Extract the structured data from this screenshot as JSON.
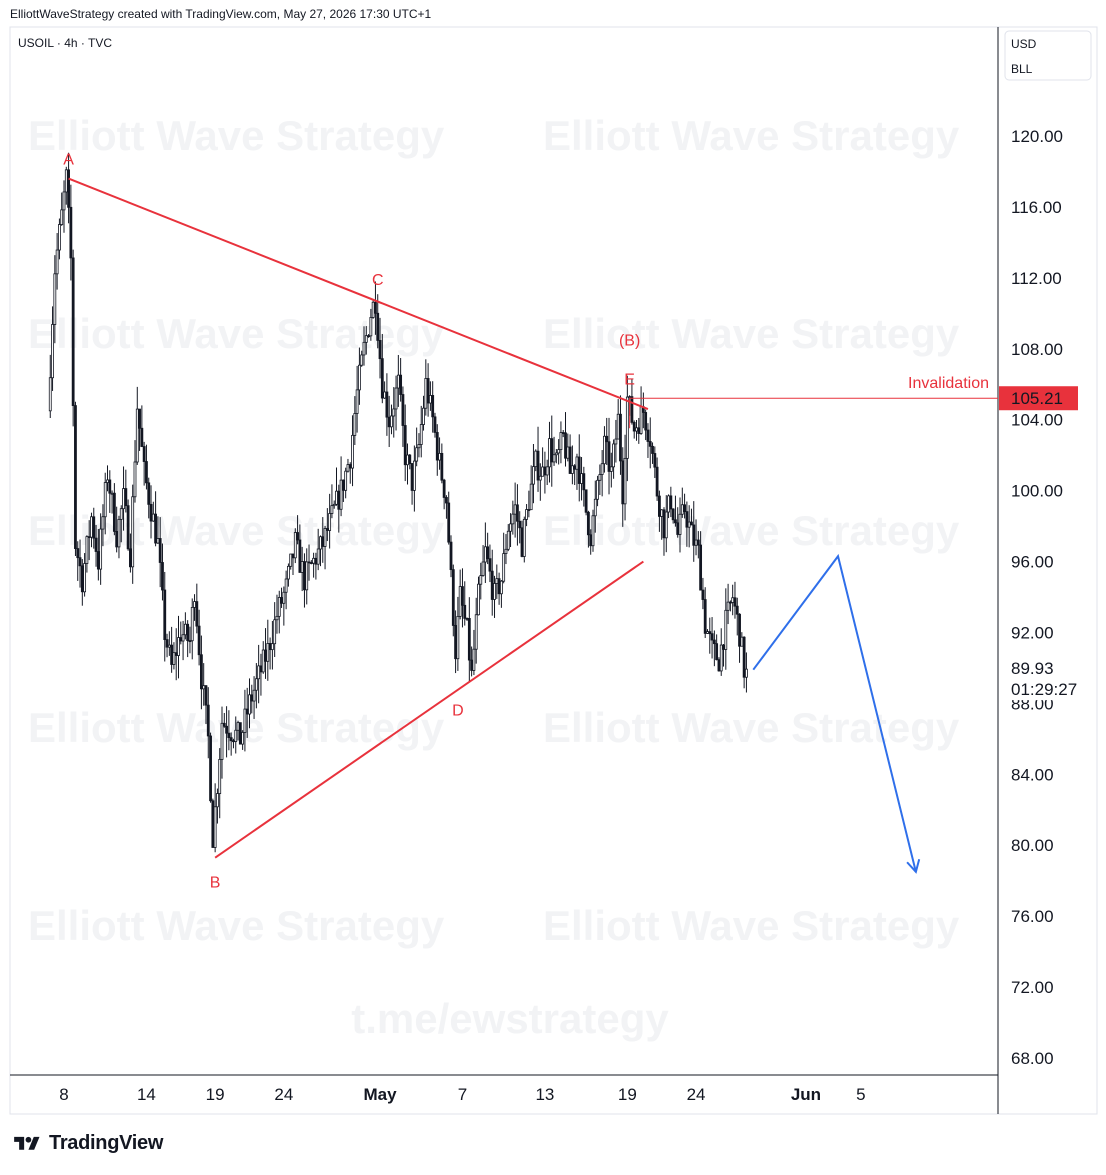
{
  "header": {
    "caption": "ElliottWaveStrategy created with TradingView.com, May 27, 2026 17:30 UTC+1"
  },
  "symbol": {
    "label": "USOIL · 4h · TVC"
  },
  "scale": {
    "currency": "USD",
    "unit": "BLL"
  },
  "watermark": {
    "brand": "Elliott Wave Strategy",
    "url": "t.me/ewstrategy"
  },
  "footer": {
    "brand": "TradingView",
    "logo_icon": "tradingview-logo-icon"
  },
  "price_labels": {
    "last_price": "89.93",
    "countdown": "01:29:27",
    "invalidation_price": "105.21",
    "invalidation_text": "Invalidation"
  },
  "colors": {
    "up": "#131722",
    "down": "#131722",
    "wave_lines": "#e8323c",
    "projection": "#2f6fea",
    "invalidation_bg": "#e8323c"
  },
  "chart_data": {
    "type": "candlestick",
    "symbol": "USOIL",
    "interval": "4h",
    "source": "TVC",
    "ylim": [
      66,
      124
    ],
    "y_ticks": [
      "120.00",
      "116.00",
      "112.00",
      "108.00",
      "104.00",
      "100.00",
      "96.00",
      "92.00",
      "88.00",
      "84.00",
      "80.00",
      "76.00",
      "72.00",
      "68.00"
    ],
    "x_ticks": [
      {
        "label": "8",
        "date": "2026-04-08",
        "bold": false
      },
      {
        "label": "14",
        "date": "2026-04-14",
        "bold": false
      },
      {
        "label": "19",
        "date": "2026-04-19",
        "bold": false
      },
      {
        "label": "24",
        "date": "2026-04-24",
        "bold": false
      },
      {
        "label": "May",
        "date": "2026-05-01",
        "bold": true
      },
      {
        "label": "7",
        "date": "2026-05-07",
        "bold": false
      },
      {
        "label": "13",
        "date": "2026-05-13",
        "bold": false
      },
      {
        "label": "19",
        "date": "2026-05-19",
        "bold": false
      },
      {
        "label": "24",
        "date": "2026-05-24",
        "bold": false
      },
      {
        "label": "Jun",
        "date": "2026-06-01",
        "bold": true
      },
      {
        "label": "5",
        "date": "2026-06-05",
        "bold": false
      }
    ],
    "price_path": [
      [
        "2026-04-07 00:00",
        104.5
      ],
      [
        "2026-04-07 12:00",
        112.5
      ],
      [
        "2026-04-08 00:00",
        115.5
      ],
      [
        "2026-04-08 08:00",
        117.6
      ],
      [
        "2026-04-08 16:00",
        113.0
      ],
      [
        "2026-04-09 00:00",
        97.0
      ],
      [
        "2026-04-09 12:00",
        95.0
      ],
      [
        "2026-04-10 04:00",
        98.5
      ],
      [
        "2026-04-10 16:00",
        96.0
      ],
      [
        "2026-04-11 08:00",
        101.0
      ],
      [
        "2026-04-12 00:00",
        97.5
      ],
      [
        "2026-04-12 12:00",
        99.5
      ],
      [
        "2026-04-13 00:00",
        96.5
      ],
      [
        "2026-04-13 12:00",
        104.8
      ],
      [
        "2026-04-14 00:00",
        101.0
      ],
      [
        "2026-04-14 12:00",
        99.0
      ],
      [
        "2026-04-15 00:00",
        97.0
      ],
      [
        "2026-04-15 12:00",
        92.0
      ],
      [
        "2026-04-16 00:00",
        90.0
      ],
      [
        "2026-04-16 16:00",
        92.0
      ],
      [
        "2026-04-17 08:00",
        91.5
      ],
      [
        "2026-04-17 16:00",
        94.5
      ],
      [
        "2026-04-18 04:00",
        89.5
      ],
      [
        "2026-04-18 16:00",
        86.0
      ],
      [
        "2026-04-19 00:00",
        80.5
      ],
      [
        "2026-04-19 08:00",
        83.5
      ],
      [
        "2026-04-19 16:00",
        87.0
      ],
      [
        "2026-04-20 08:00",
        86.5
      ],
      [
        "2026-04-21 00:00",
        86.0
      ],
      [
        "2026-04-21 16:00",
        88.0
      ],
      [
        "2026-04-22 08:00",
        89.5
      ],
      [
        "2026-04-23 00:00",
        91.0
      ],
      [
        "2026-04-23 16:00",
        93.0
      ],
      [
        "2026-04-24 08:00",
        94.5
      ],
      [
        "2026-04-25 00:00",
        97.0
      ],
      [
        "2026-04-25 16:00",
        95.0
      ],
      [
        "2026-04-26 08:00",
        96.0
      ],
      [
        "2026-04-27 00:00",
        97.0
      ],
      [
        "2026-04-27 16:00",
        98.5
      ],
      [
        "2026-04-28 08:00",
        100.0
      ],
      [
        "2026-04-29 00:00",
        102.0
      ],
      [
        "2026-04-29 12:00",
        105.5
      ],
      [
        "2026-04-30 00:00",
        108.0
      ],
      [
        "2026-04-30 12:00",
        110.0
      ],
      [
        "2026-04-30 20:00",
        110.8
      ],
      [
        "2026-05-01 08:00",
        106.0
      ],
      [
        "2026-05-01 20:00",
        104.0
      ],
      [
        "2026-05-02 12:00",
        106.0
      ],
      [
        "2026-05-03 00:00",
        102.0
      ],
      [
        "2026-05-03 12:00",
        100.5
      ],
      [
        "2026-05-04 00:00",
        102.5
      ],
      [
        "2026-05-04 12:00",
        106.0
      ],
      [
        "2026-05-05 00:00",
        104.0
      ],
      [
        "2026-05-05 12:00",
        101.5
      ],
      [
        "2026-05-06 00:00",
        99.5
      ],
      [
        "2026-05-06 08:00",
        95.0
      ],
      [
        "2026-05-06 16:00",
        91.0
      ],
      [
        "2026-05-07 00:00",
        94.0
      ],
      [
        "2026-05-07 12:00",
        92.0
      ],
      [
        "2026-05-07 20:00",
        89.5
      ],
      [
        "2026-05-08 08:00",
        94.0
      ],
      [
        "2026-05-08 20:00",
        96.5
      ],
      [
        "2026-05-09 12:00",
        94.0
      ],
      [
        "2026-05-10 00:00",
        95.0
      ],
      [
        "2026-05-10 12:00",
        98.0
      ],
      [
        "2026-05-11 00:00",
        99.0
      ],
      [
        "2026-05-11 12:00",
        97.0
      ],
      [
        "2026-05-12 00:00",
        99.5
      ],
      [
        "2026-05-12 12:00",
        101.5
      ],
      [
        "2026-05-13 00:00",
        101.0
      ],
      [
        "2026-05-13 12:00",
        102.5
      ],
      [
        "2026-05-14 00:00",
        101.5
      ],
      [
        "2026-05-14 12:00",
        103.0
      ],
      [
        "2026-05-15 00:00",
        101.0
      ],
      [
        "2026-05-15 12:00",
        102.0
      ],
      [
        "2026-05-16 00:00",
        99.5
      ],
      [
        "2026-05-16 12:00",
        97.5
      ],
      [
        "2026-05-17 00:00",
        100.0
      ],
      [
        "2026-05-17 12:00",
        102.5
      ],
      [
        "2026-05-18 00:00",
        101.0
      ],
      [
        "2026-05-18 12:00",
        104.0
      ],
      [
        "2026-05-18 20:00",
        100.0
      ],
      [
        "2026-05-19 04:00",
        105.2
      ],
      [
        "2026-05-19 16:00",
        103.5
      ],
      [
        "2026-05-20 08:00",
        104.5
      ],
      [
        "2026-05-20 20:00",
        103.0
      ],
      [
        "2026-05-21 08:00",
        100.0
      ],
      [
        "2026-05-21 20:00",
        98.0
      ],
      [
        "2026-05-22 08:00",
        99.5
      ],
      [
        "2026-05-22 20:00",
        97.5
      ],
      [
        "2026-05-23 08:00",
        99.0
      ],
      [
        "2026-05-23 20:00",
        97.5
      ],
      [
        "2026-05-24 08:00",
        96.5
      ],
      [
        "2026-05-24 20:00",
        92.5
      ],
      [
        "2026-05-25 08:00",
        91.0
      ],
      [
        "2026-05-25 20:00",
        90.5
      ],
      [
        "2026-05-26 08:00",
        92.5
      ],
      [
        "2026-05-26 20:00",
        94.0
      ],
      [
        "2026-05-27 08:00",
        92.0
      ],
      [
        "2026-05-27 16:00",
        89.93
      ]
    ],
    "wave_points": [
      {
        "label": "A",
        "date": "2026-04-08 08:00",
        "price": 117.6
      },
      {
        "label": "B",
        "date": "2026-04-19 00:00",
        "price": 79.3
      },
      {
        "label": "C",
        "date": "2026-04-30 20:00",
        "price": 110.8
      },
      {
        "label": "D",
        "date": "2026-05-06 16:00",
        "price": 89.0
      },
      {
        "label": "E",
        "date": "2026-05-19 04:00",
        "price": 105.2
      },
      {
        "label": "(B)",
        "date": "2026-05-19 04:00",
        "price": 107.4
      }
    ],
    "trendlines": [
      {
        "name": "upper",
        "from": [
          "2026-04-08 08:00",
          117.6
        ],
        "to": [
          "2026-05-20 12:00",
          104.6
        ]
      },
      {
        "name": "lower",
        "from": [
          "2026-04-19 00:00",
          79.3
        ],
        "to": [
          "2026-05-20 04:00",
          96.0
        ]
      }
    ],
    "invalidation_level": 105.21,
    "projection": [
      [
        "2026-05-28 04:00",
        89.9
      ],
      [
        "2026-06-03 08:00",
        96.3
      ],
      [
        "2026-06-09 00:00",
        78.5
      ]
    ]
  }
}
